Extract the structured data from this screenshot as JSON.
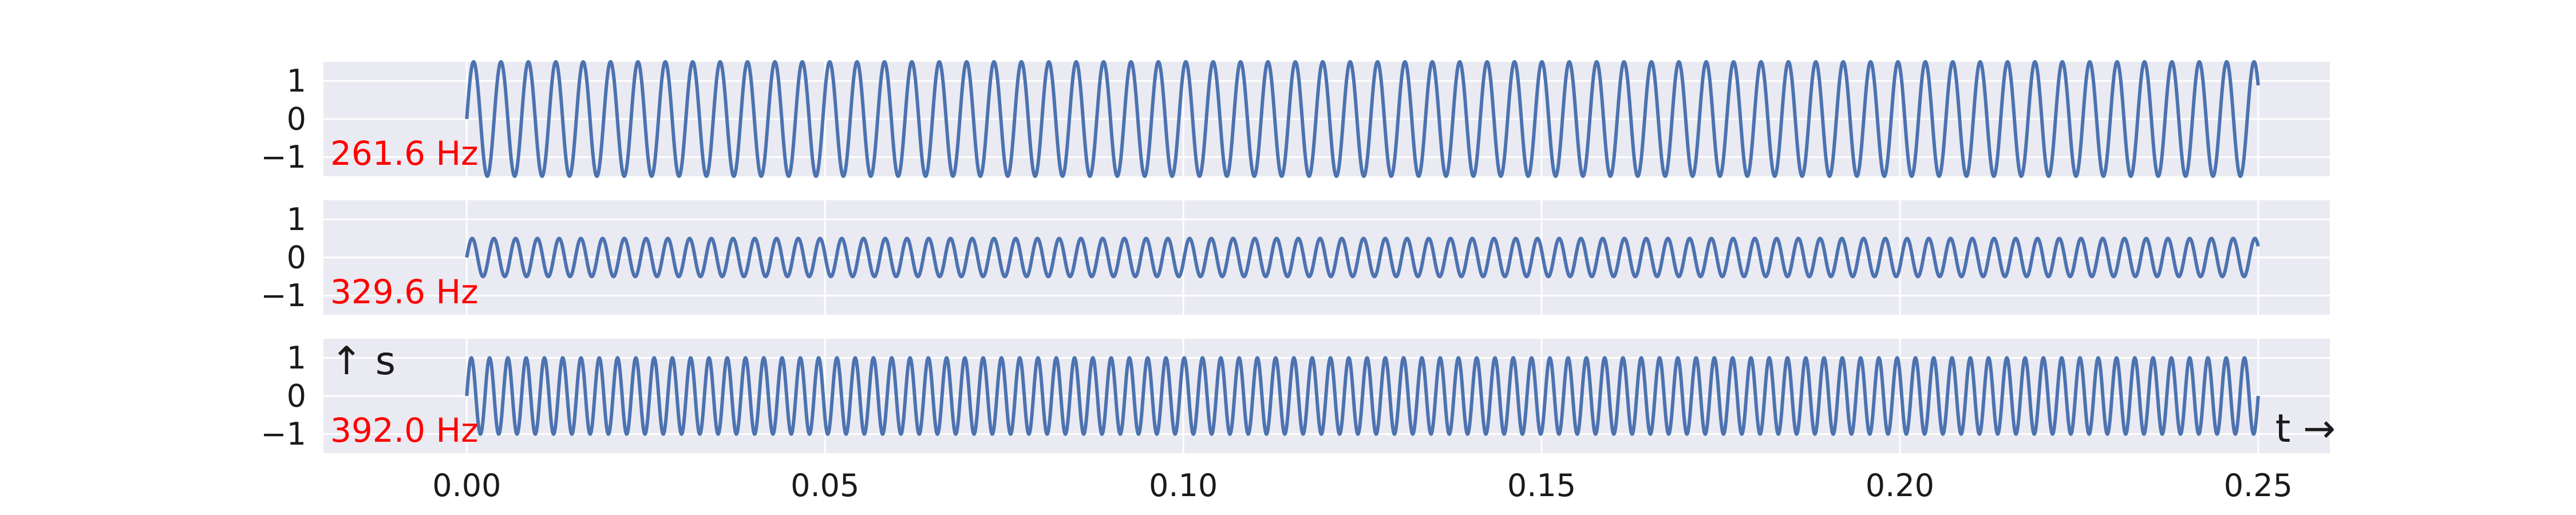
{
  "chart_data": {
    "type": "line",
    "layout": "stacked-subplots",
    "sharex": true,
    "grid": true,
    "xlim": [
      -0.02,
      0.26
    ],
    "ylim": [
      -1.5,
      1.5
    ],
    "x_ticks": [
      0.0,
      0.05,
      0.1,
      0.15,
      0.2,
      0.25
    ],
    "x_tick_labels": [
      "0.00",
      "0.05",
      "0.10",
      "0.15",
      "0.20",
      "0.25"
    ],
    "y_ticks": [
      -1,
      0,
      1
    ],
    "y_tick_labels": [
      "−1",
      "0",
      "1"
    ],
    "x_annotation": "t →",
    "y_annotation": "↑ s",
    "line_color": "#4c72b0",
    "label_color": "#ff0000",
    "background_color": "#eaeaf2",
    "t_range": [
      0,
      0.25
    ],
    "subplots": [
      {
        "label": "261.6 Hz",
        "frequency": 261.6,
        "amplitude": 1.5
      },
      {
        "label": "329.6 Hz",
        "frequency": 329.6,
        "amplitude": 0.5
      },
      {
        "label": "392.0 Hz",
        "frequency": 392.0,
        "amplitude": 1.0
      }
    ]
  }
}
